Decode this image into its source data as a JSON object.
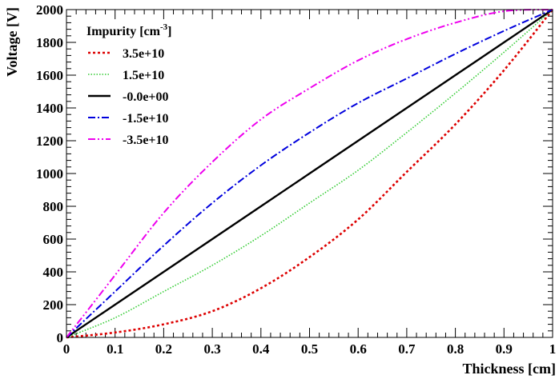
{
  "chart_data": {
    "type": "line",
    "xlabel": "Thickness [cm]",
    "ylabel": "Voltage [V]",
    "xlim": [
      0,
      1
    ],
    "ylim": [
      0,
      2000
    ],
    "x_ticks": [
      "0",
      "0.1",
      "0.2",
      "0.3",
      "0.4",
      "0.5",
      "0.6",
      "0.7",
      "0.8",
      "0.9",
      "1"
    ],
    "y_ticks": [
      "0",
      "200",
      "400",
      "600",
      "800",
      "1000",
      "1200",
      "1400",
      "1600",
      "1800",
      "2000"
    ],
    "legend": {
      "title_main": "Impurity [cm",
      "title_sup": "-3",
      "title_end": "]",
      "placement": "top-left"
    },
    "x": [
      0,
      0.1,
      0.2,
      0.3,
      0.4,
      0.5,
      0.6,
      0.7,
      0.8,
      0.9,
      1.0
    ],
    "series": [
      {
        "name": "3.5e+10",
        "color": "#dd0000",
        "dash": "dot",
        "values": [
          0,
          30,
          80,
          160,
          300,
          490,
          720,
          1010,
          1300,
          1630,
          2000
        ]
      },
      {
        "name": "1.5e+10",
        "color": "#33cc33",
        "dash": "fine-dot",
        "values": [
          0,
          120,
          280,
          440,
          620,
          820,
          1020,
          1250,
          1490,
          1740,
          2000
        ]
      },
      {
        "name": "-0.0e+00",
        "color": "#000000",
        "dash": "solid",
        "values": [
          0,
          200,
          400,
          600,
          800,
          1000,
          1200,
          1400,
          1600,
          1800,
          2000
        ]
      },
      {
        "name": "-1.5e+10",
        "color": "#0000dd",
        "dash": "dash-dot",
        "values": [
          0,
          280,
          560,
          820,
          1050,
          1250,
          1430,
          1580,
          1730,
          1870,
          2000
        ]
      },
      {
        "name": "-3.5e+10",
        "color": "#ee00ee",
        "dash": "dash-dot-dot",
        "values": [
          0,
          380,
          760,
          1070,
          1330,
          1520,
          1690,
          1820,
          1920,
          1990,
          2000
        ]
      }
    ]
  }
}
